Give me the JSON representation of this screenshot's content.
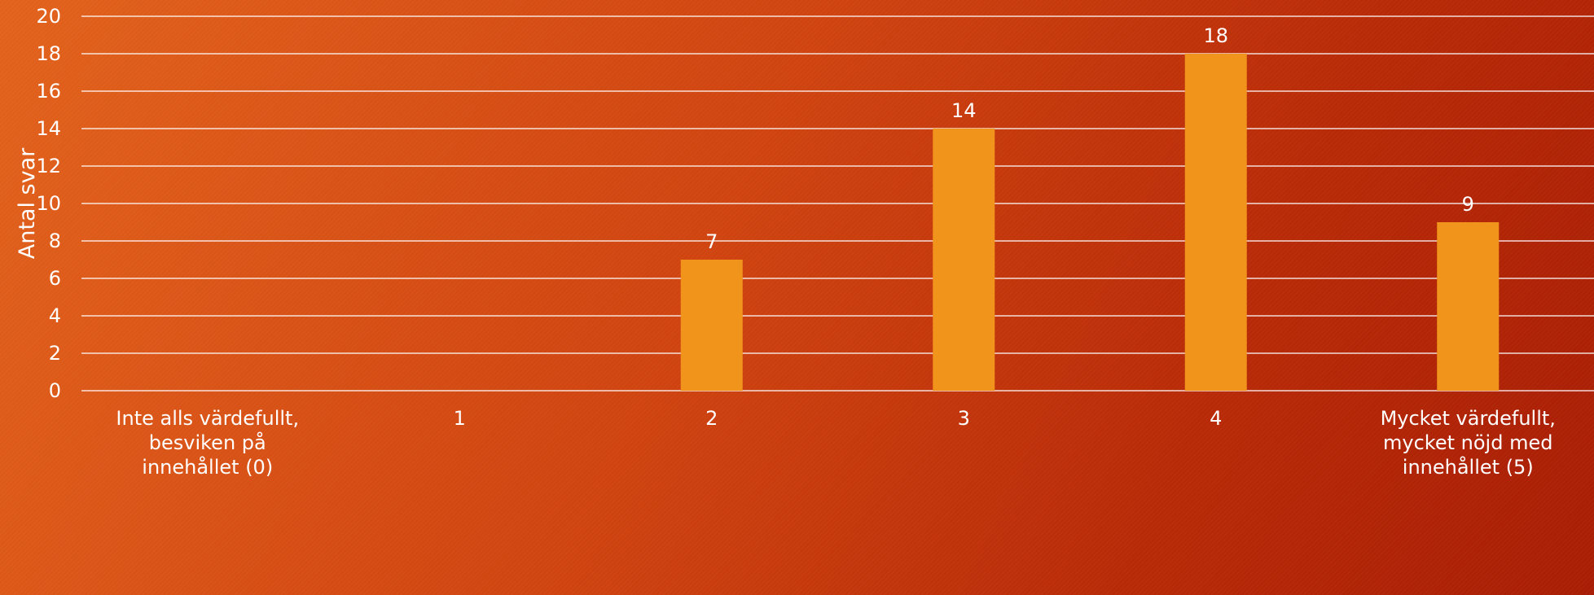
{
  "chart_data": {
    "type": "bar",
    "title": "",
    "xlabel": "",
    "ylabel": "Antal svar",
    "ylim": [
      0,
      20
    ],
    "yticks": [
      0,
      2,
      4,
      6,
      8,
      10,
      12,
      14,
      16,
      18,
      20
    ],
    "grid": true,
    "legend": "none",
    "categories": [
      [
        "Inte alls värdefullt,",
        "besviken på",
        "innehållet (0)"
      ],
      [
        "1"
      ],
      [
        "2"
      ],
      [
        "3"
      ],
      [
        "4"
      ],
      [
        "Mycket värdefullt,",
        "mycket nöjd med",
        "innehållet (5)"
      ]
    ],
    "values": [
      0,
      0,
      7,
      14,
      18,
      9
    ],
    "data_labels": [
      "",
      "",
      "7",
      "14",
      "18",
      "9"
    ],
    "colors": {
      "bar": "#f0941c",
      "grid": "#ffffff",
      "text": "#ffffff"
    }
  }
}
